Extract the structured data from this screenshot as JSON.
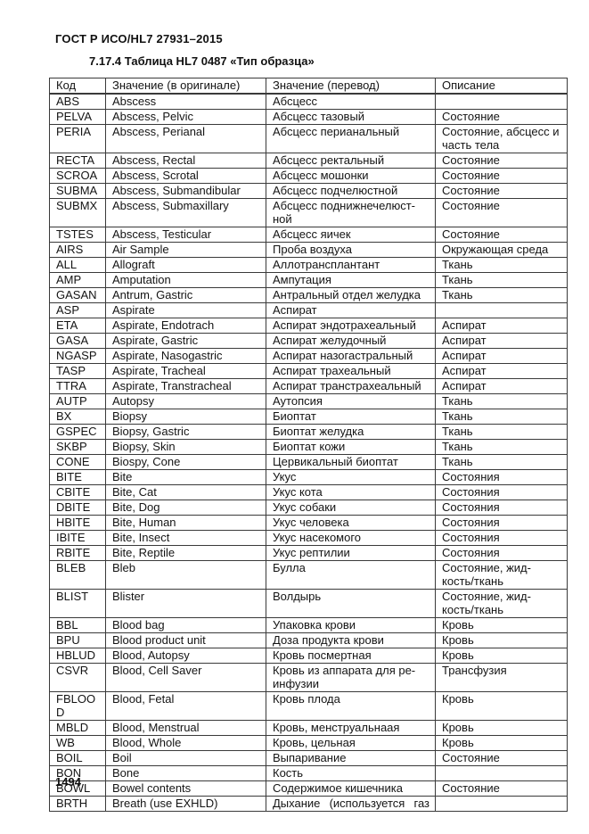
{
  "page": {
    "doc_title": "ГОСТ Р ИСО/HL7 27931–2015",
    "section_title": "7.17.4 Таблица HL7 0487 «Тип образца»",
    "page_number": "1494"
  },
  "table": {
    "columns": [
      "Код",
      "Значение (в оригинале)",
      "Значение (перевод)",
      "Описание"
    ],
    "rows": [
      {
        "code": "ABS",
        "original": "Abscess",
        "translation": "Абсцесс",
        "description": ""
      },
      {
        "code": "PELVA",
        "original": "Abscess, Pelvic",
        "translation": "Абсцесс тазовый",
        "description": "Состояние"
      },
      {
        "code": "PERIA",
        "original": "Abscess, Perianal",
        "translation": "Абсцесс перианальный",
        "description": "Состояние, абсцесс и часть тела"
      },
      {
        "code": "RECTA",
        "original": "Abscess, Rectal",
        "translation": "Абсцесс ректальный",
        "description": "Состояние"
      },
      {
        "code": "SCROA",
        "original": "Abscess, Scrotal",
        "translation": "Абсцесс мошонки",
        "description": "Состояние"
      },
      {
        "code": "SUBMA",
        "original": "Abscess, Submandibular",
        "translation": "Абсцесс подчелюстной",
        "description": "Состояние"
      },
      {
        "code": "SUBMX",
        "original": "Abscess, Submaxillary",
        "translation": "Абсцесс поднижнечелюст-ной",
        "description": "Состояние"
      },
      {
        "code": "TSTES",
        "original": "Abscess, Testicular",
        "translation": "Абсцесс яичек",
        "description": "Состояние"
      },
      {
        "code": "AIRS",
        "original": "Air Sample",
        "translation": "Проба воздуха",
        "description": "Окружающая среда"
      },
      {
        "code": "ALL",
        "original": "Allograft",
        "translation": "Аллотрансплантант",
        "description": "Ткань"
      },
      {
        "code": "AMP",
        "original": "Amputation",
        "translation": "Ампутация",
        "description": "Ткань"
      },
      {
        "code": "GASAN",
        "original": "Antrum, Gastric",
        "translation": "Антральный отдел желудка",
        "description": "Ткань"
      },
      {
        "code": "ASP",
        "original": "Aspirate",
        "translation": "Аспират",
        "description": ""
      },
      {
        "code": "ETA",
        "original": "Aspirate, Endotrach",
        "translation": "Аспират эндотрахеальный",
        "description": "Аспират"
      },
      {
        "code": "GASA",
        "original": "Aspirate, Gastric",
        "translation": "Аспират желудочный",
        "description": "Аспират"
      },
      {
        "code": "NGASP",
        "original": "Aspirate, Nasogastric",
        "translation": "Аспират назогастральный",
        "description": "Аспират"
      },
      {
        "code": "TASP",
        "original": "Aspirate, Tracheal",
        "translation": "Аспират трахеальный",
        "description": "Аспират"
      },
      {
        "code": "TTRA",
        "original": "Aspirate, Transtracheal",
        "translation": "Аспират транстрахеальный",
        "description": "Аспират"
      },
      {
        "code": "AUTP",
        "original": "Autopsy",
        "translation": "Аутопсия",
        "description": "Ткань"
      },
      {
        "code": "BX",
        "original": "Biopsy",
        "translation": "Биоптат",
        "description": "Ткань"
      },
      {
        "code": "GSPEC",
        "original": "Biopsy, Gastric",
        "translation": "Биоптат желудка",
        "description": "Ткань"
      },
      {
        "code": "SKBP",
        "original": "Biopsy, Skin",
        "translation": "Биоптат кожи",
        "description": "Ткань"
      },
      {
        "code": "CONE",
        "original": "Biospy, Cone",
        "translation": "Цервикальный биоптат",
        "description": "Ткань"
      },
      {
        "code": "BITE",
        "original": "Bite",
        "translation": "Укус",
        "description": "Состояния"
      },
      {
        "code": "CBITE",
        "original": "Bite, Cat",
        "translation": "Укус кота",
        "description": "Состояния"
      },
      {
        "code": "DBITE",
        "original": "Bite, Dog",
        "translation": "Укус собаки",
        "description": "Состояния"
      },
      {
        "code": "HBITE",
        "original": "Bite, Human",
        "translation": "Укус человека",
        "description": "Состояния"
      },
      {
        "code": "IBITE",
        "original": "Bite, Insect",
        "translation": "Укус насекомого",
        "description": "Состояния"
      },
      {
        "code": "RBITE",
        "original": "Bite, Reptile",
        "translation": "Укус рептилии",
        "description": "Состояния"
      },
      {
        "code": "BLEB",
        "original": "Bleb",
        "translation": "Булла",
        "description": "Состояние, жид-кость/ткань"
      },
      {
        "code": "BLIST",
        "original": "Blister",
        "translation": "Волдырь",
        "description": "Состояние, жид-кость/ткань"
      },
      {
        "code": "BBL",
        "original": "Blood bag",
        "translation": "Упаковка крови",
        "description": "Кровь"
      },
      {
        "code": "BPU",
        "original": "Blood product unit",
        "translation": "Доза продукта крови",
        "description": "Кровь"
      },
      {
        "code": "HBLUD",
        "original": "Blood, Autopsy",
        "translation": "Кровь посмертная",
        "description": "Кровь"
      },
      {
        "code": "CSVR",
        "original": "Blood, Cell Saver",
        "translation": "Кровь из аппарата для ре-инфузии",
        "description": "Трансфузия"
      },
      {
        "code": "FBLOOD",
        "original": "Blood, Fetal",
        "translation": "Кровь плода",
        "description": "Кровь"
      },
      {
        "code": "MBLD",
        "original": "Blood, Menstrual",
        "translation": "Кровь, менструальнаая",
        "description": "Кровь"
      },
      {
        "code": "WB",
        "original": "Blood, Whole",
        "translation": "Кровь, цельная",
        "description": "Кровь"
      },
      {
        "code": "BOIL",
        "original": "Boil",
        "translation": "Выпаривание",
        "description": "Состояние"
      },
      {
        "code": "BON",
        "original": "Bone",
        "translation": "Кость",
        "description": ""
      },
      {
        "code": "BOWL",
        "original": "Bowel contents",
        "translation": "Содержимое кишечника",
        "description": "Состояние"
      },
      {
        "code": "BRTH",
        "original": "Breath (use EXHLD)",
        "translation": "Дыхание (используется газ",
        "description": "",
        "truncated": true
      }
    ]
  }
}
